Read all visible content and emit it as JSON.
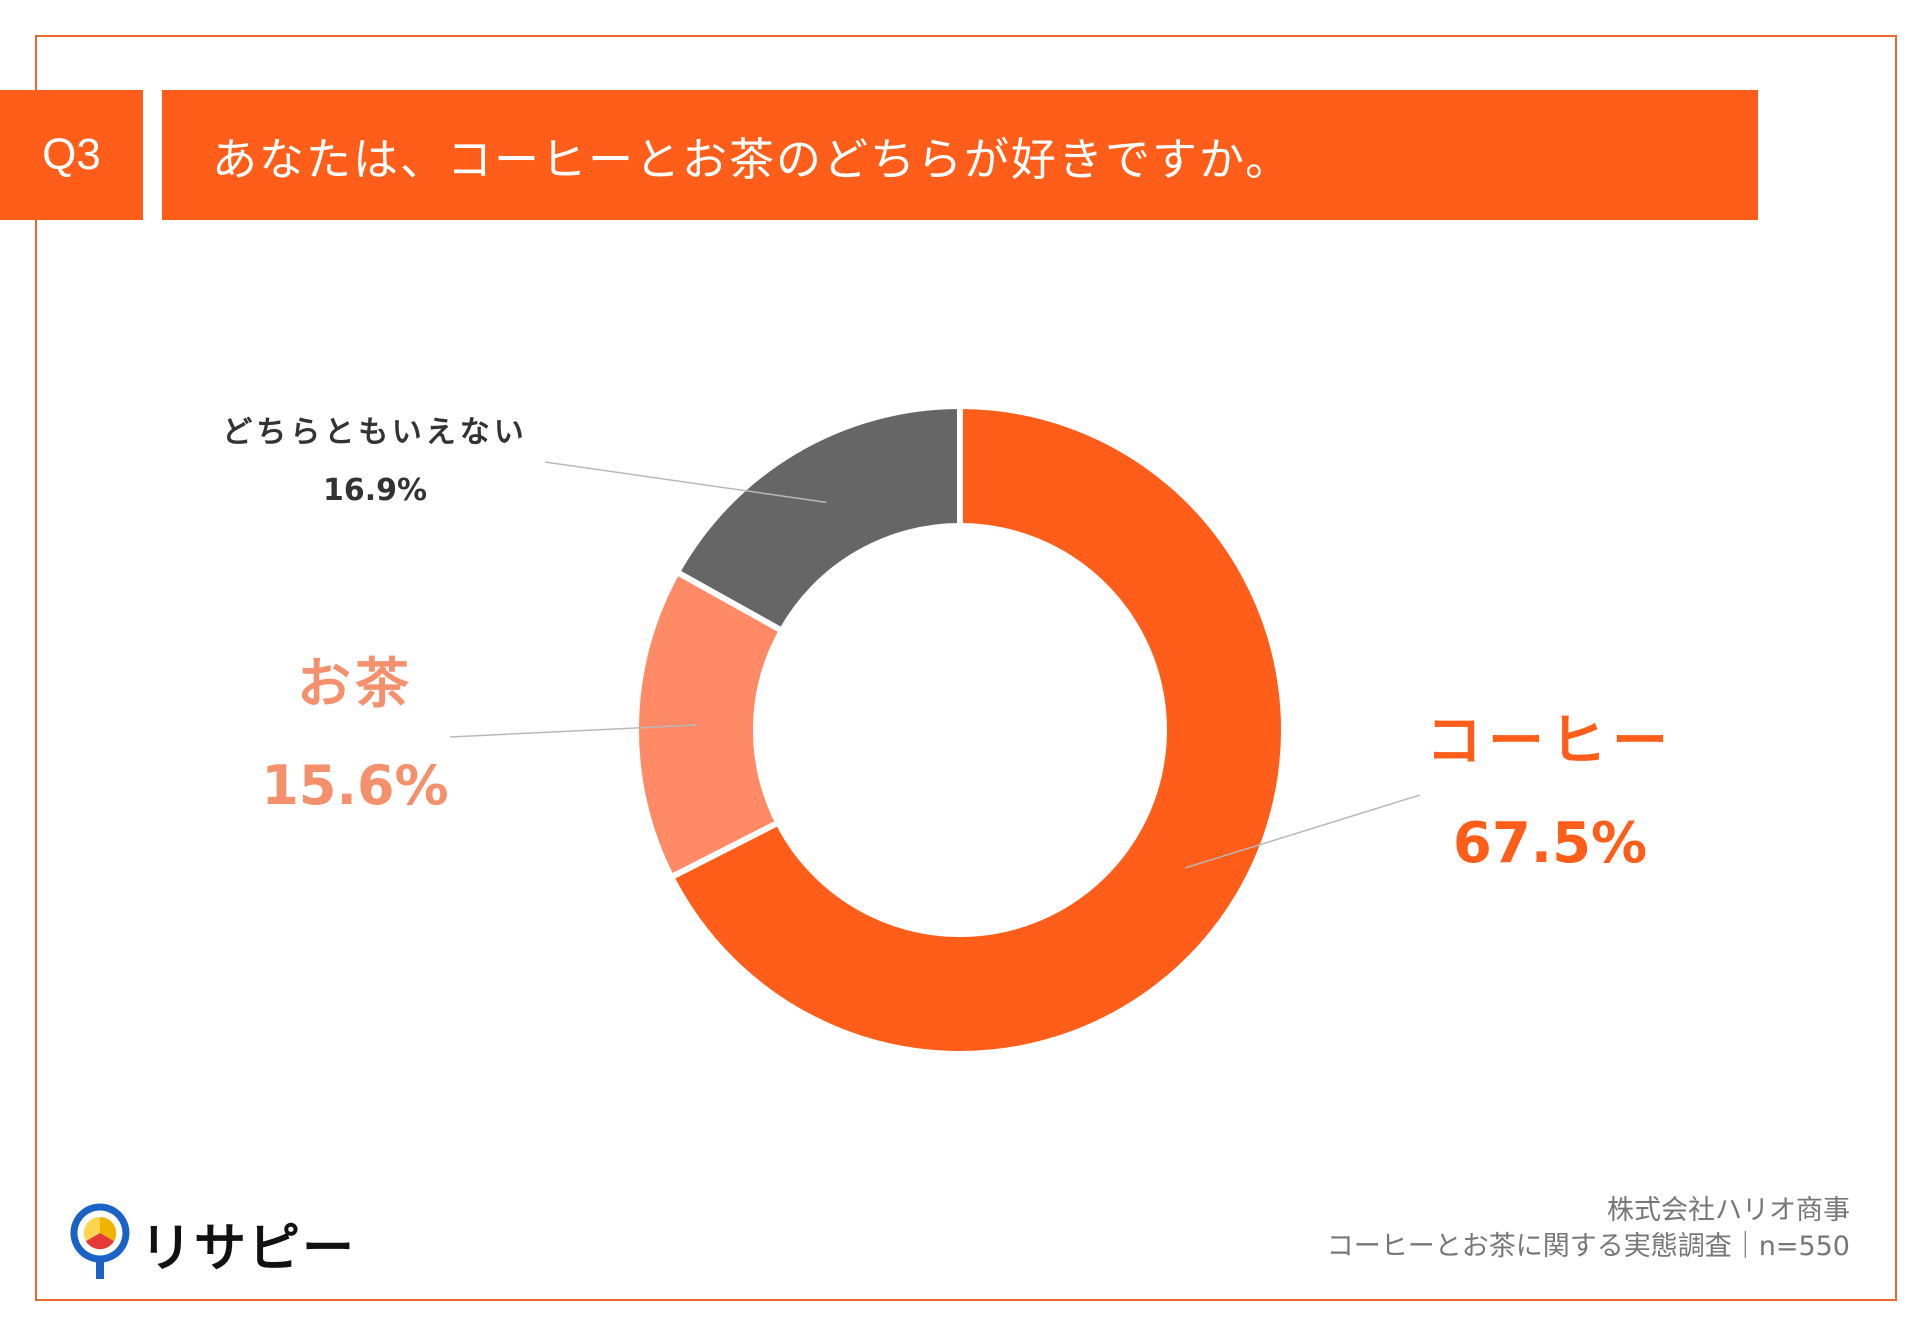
{
  "header": {
    "question_id": "Q3",
    "question_text": "あなたは、コーヒーとお茶のどちらが好きですか。"
  },
  "chart_data": {
    "type": "pie",
    "donut": true,
    "categories": [
      "コーヒー",
      "お茶",
      "どちらともいえない"
    ],
    "values": [
      67.5,
      15.6,
      16.9
    ],
    "value_labels": [
      "67.5%",
      "15.6%",
      "16.9%"
    ],
    "unit": "%",
    "colors": [
      "#ff5e1a",
      "#ff8a65",
      "#666666"
    ],
    "label_colors": [
      "#ff5e1a",
      "#f4906c",
      "#333333"
    ]
  },
  "footer": {
    "company": "株式会社ハリオ商事",
    "survey": "コーヒーとお茶に関する実態調査｜n=550",
    "logo_text": "リサピー"
  }
}
